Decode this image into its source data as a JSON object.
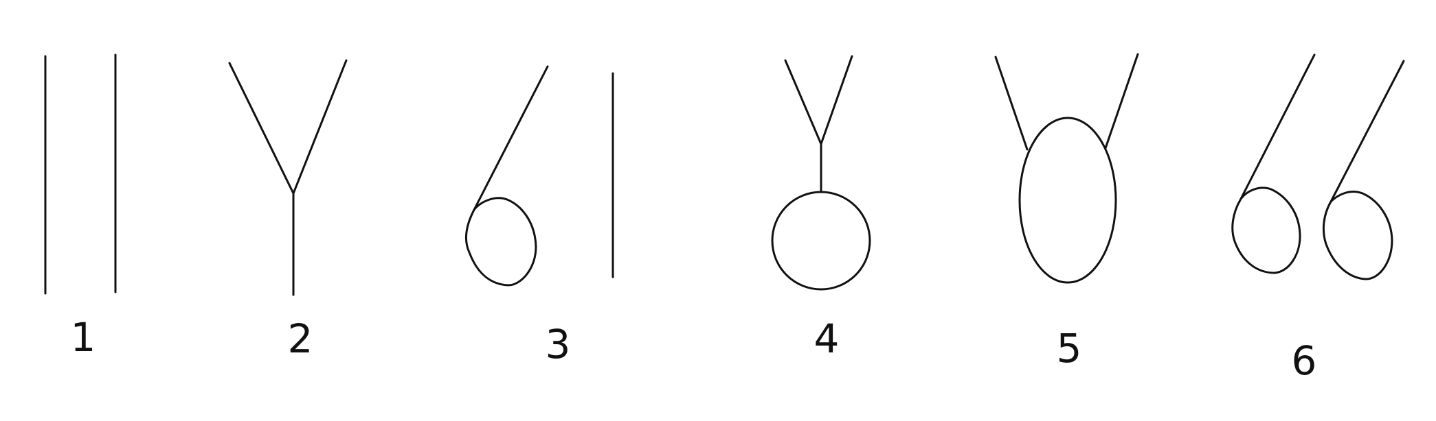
{
  "figures": [
    {
      "label": "1",
      "shape": "two-parallel-lines"
    },
    {
      "label": "2",
      "shape": "y-junction"
    },
    {
      "label": "3",
      "shape": "loop-with-separate-line"
    },
    {
      "label": "4",
      "shape": "y-with-stem-and-circle"
    },
    {
      "label": "5",
      "shape": "two-lines-attached-to-oval"
    },
    {
      "label": "6",
      "shape": "two-loops-with-tails"
    }
  ],
  "colors": {
    "stroke": "#111111",
    "background": "#ffffff"
  }
}
